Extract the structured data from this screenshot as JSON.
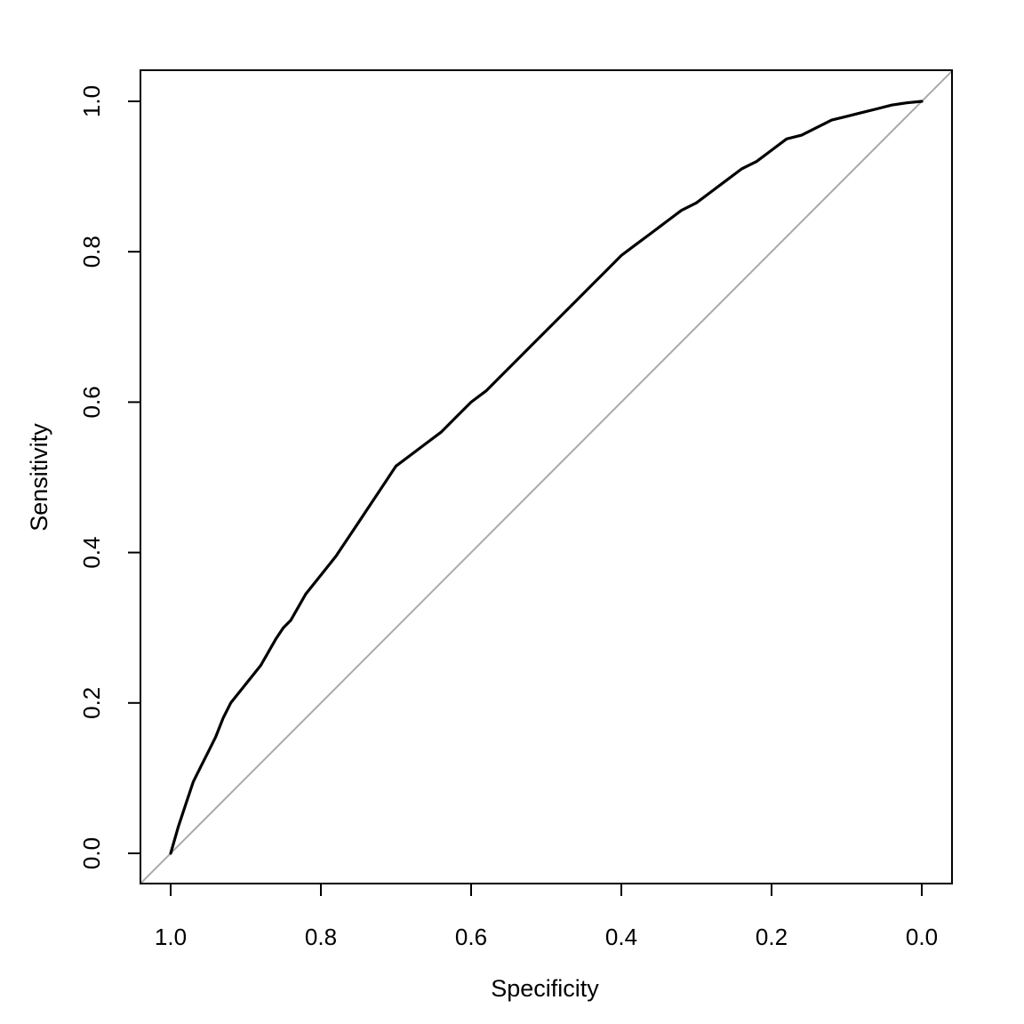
{
  "chart_data": {
    "type": "line",
    "title": "",
    "xlabel": "Specificity",
    "ylabel": "Sensitivity",
    "xlim": [
      1.0,
      0.0
    ],
    "ylim": [
      0.0,
      1.0
    ],
    "x_reversed": true,
    "x_ticks": [
      1.0,
      0.8,
      0.6,
      0.4,
      0.2,
      0.0
    ],
    "x_tick_labels": [
      "1.0",
      "0.8",
      "0.6",
      "0.4",
      "0.2",
      "0.0"
    ],
    "y_ticks": [
      0.0,
      0.2,
      0.4,
      0.6,
      0.8,
      1.0
    ],
    "y_tick_labels": [
      "0.0",
      "0.2",
      "0.4",
      "0.6",
      "0.8",
      "1.0"
    ],
    "grid": false,
    "legend": "none",
    "colors": {
      "roc": "#000000",
      "reference": "#aaaaaa",
      "frame": "#000000"
    },
    "series": [
      {
        "role": "roc-curve",
        "x": [
          1.0,
          0.99,
          0.98,
          0.97,
          0.96,
          0.95,
          0.94,
          0.93,
          0.92,
          0.9,
          0.88,
          0.86,
          0.85,
          0.84,
          0.82,
          0.8,
          0.78,
          0.76,
          0.75,
          0.74,
          0.72,
          0.7,
          0.68,
          0.66,
          0.64,
          0.62,
          0.6,
          0.58,
          0.56,
          0.54,
          0.52,
          0.5,
          0.48,
          0.46,
          0.44,
          0.42,
          0.4,
          0.38,
          0.36,
          0.34,
          0.32,
          0.3,
          0.28,
          0.26,
          0.24,
          0.22,
          0.2,
          0.18,
          0.16,
          0.14,
          0.12,
          0.1,
          0.08,
          0.06,
          0.04,
          0.02,
          0.0
        ],
        "y": [
          0.0,
          0.035,
          0.065,
          0.095,
          0.115,
          0.135,
          0.155,
          0.18,
          0.2,
          0.225,
          0.25,
          0.285,
          0.3,
          0.31,
          0.345,
          0.37,
          0.395,
          0.425,
          0.44,
          0.455,
          0.485,
          0.515,
          0.53,
          0.545,
          0.56,
          0.58,
          0.6,
          0.615,
          0.635,
          0.655,
          0.675,
          0.695,
          0.715,
          0.735,
          0.755,
          0.775,
          0.795,
          0.81,
          0.825,
          0.84,
          0.855,
          0.865,
          0.88,
          0.895,
          0.91,
          0.92,
          0.935,
          0.95,
          0.955,
          0.965,
          0.975,
          0.98,
          0.985,
          0.99,
          0.995,
          0.998,
          1.0
        ]
      },
      {
        "role": "reference-diagonal",
        "x": [
          1.0,
          0.0
        ],
        "y": [
          0.0,
          1.0
        ]
      }
    ]
  }
}
